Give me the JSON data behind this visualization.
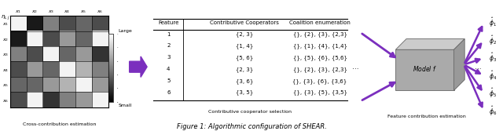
{
  "title": "Figure 1: Algorithmic configuration of SHEAR.",
  "matrix_label": "$\\eta_{i,j}$",
  "col_labels": [
    "$x_1$",
    "$x_2$",
    "$x_3$",
    "$x_4$",
    "$x_5$",
    "$x_6$"
  ],
  "row_labels": [
    "$x_1$",
    "$x_2$",
    "$x_3$",
    "$x_4$",
    "$x_5$",
    "$x_6$"
  ],
  "matrix_values": [
    [
      0.05,
      0.9,
      0.5,
      0.7,
      0.6,
      0.7
    ],
    [
      0.9,
      0.05,
      0.7,
      0.4,
      0.6,
      0.05
    ],
    [
      0.5,
      0.7,
      0.05,
      0.6,
      0.4,
      0.8
    ],
    [
      0.7,
      0.4,
      0.6,
      0.05,
      0.3,
      0.5
    ],
    [
      0.6,
      0.6,
      0.4,
      0.3,
      0.05,
      0.4
    ],
    [
      0.7,
      0.05,
      0.8,
      0.5,
      0.4,
      0.05
    ]
  ],
  "arrow_color": "#7B2FBE",
  "colorbar_label_top": "Large",
  "colorbar_label_bottom": "Small",
  "section_label_left": "Cross-contribution estimation",
  "section_label_mid": "Contributive cooperator selection",
  "section_label_right": "Feature contribution estimation",
  "table_headers": [
    "Feature",
    "Contributive Cooperators",
    "Coalition enumeration"
  ],
  "table_rows": [
    [
      "1",
      "{2, 3}",
      "{}, {2}, {3}, {2,3}"
    ],
    [
      "2",
      "{1, 4}",
      "{}, {1}, {4}, {1,4}"
    ],
    [
      "3",
      "{5, 6}",
      "{}, {5}, {6}, {5,6}"
    ],
    [
      "4",
      "{2, 3}",
      "{}, {2}, {3}, {2,3}"
    ],
    [
      "5",
      "{3, 6}",
      "{}, {3}, {6}, {3,6}"
    ],
    [
      "6",
      "{3, 5}",
      "{}, {3}, {5}, {3,5}"
    ]
  ],
  "model_label": "Model $f$",
  "phi_labels": [
    "$\\hat{\\phi}_1$",
    "$\\hat{\\phi}_2$",
    "$\\hat{\\phi}_3$",
    "$\\hat{\\phi}_4$",
    "$\\hat{\\phi}_5$",
    "$\\hat{\\phi}_6$"
  ],
  "dots": "..."
}
